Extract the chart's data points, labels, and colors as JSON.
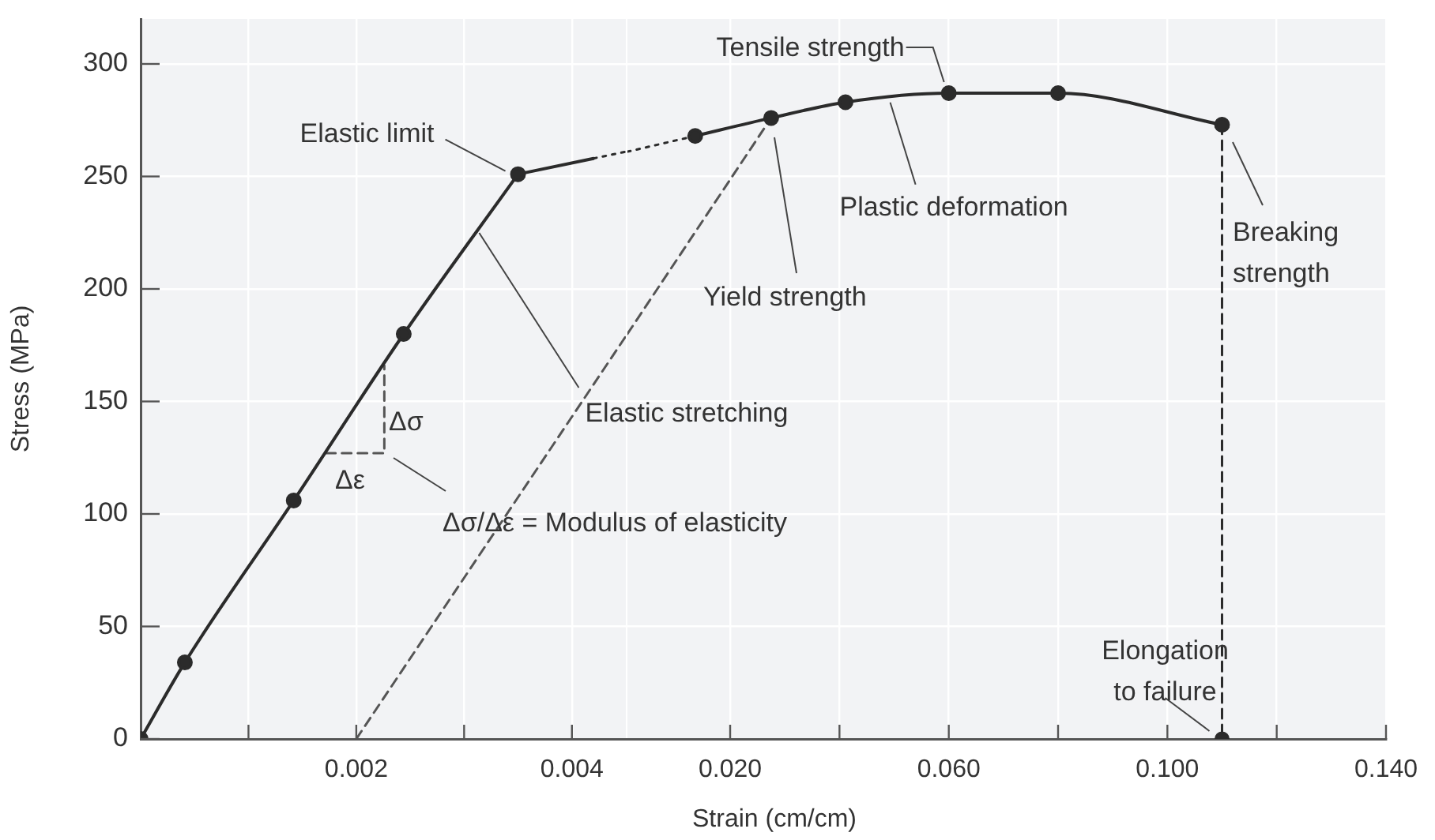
{
  "chart_data": [
    {
      "type": "line",
      "ylabel": "Stress (MPa)",
      "xlim": [
        0,
        0.0045
      ],
      "xticks": [
        {
          "value": 0.001,
          "label": null
        },
        0.002,
        {
          "value": 0.003,
          "label": null
        },
        0.004
      ],
      "ylim": [
        0,
        320
      ],
      "yticks": [
        0,
        50,
        100,
        150,
        200,
        250,
        300
      ],
      "grid": true,
      "legend": false,
      "marker": "circle",
      "line_style": "solid",
      "series": [
        {
          "color": "#2b2b2b",
          "x": [
            0,
            0.00041,
            0.00142,
            0.00244,
            0.0035
          ],
          "values": [
            0,
            34,
            106,
            180,
            251
          ]
        },
        {
          "color": "#2b2b2b",
          "x": [
            0.0035,
            0.0042
          ],
          "values": [
            251,
            258
          ],
          "marker": "none"
        },
        {
          "color": "#2b2b2b",
          "x": [
            0.0042,
            0.0045
          ],
          "values": [
            258,
            261
          ],
          "line_style": "dotted",
          "marker": "none"
        },
        {
          "color": "#555555",
          "x": [
            0.002,
            0.0045
          ],
          "values": [
            0,
            179
          ],
          "line_style": "dashed",
          "marker": "none"
        },
        {
          "color": "#555555",
          "x": [
            0.00172,
            0.00226,
            0.00226
          ],
          "values": [
            127,
            127,
            166
          ],
          "line_style": "dashed",
          "marker": "none"
        }
      ],
      "annotations": [
        {
          "text": "Elastic limit",
          "x": 0.0035,
          "y": 251
        },
        {
          "text": "Elastic stretching",
          "x": 0.00314,
          "y": 227
        },
        "Δσ",
        "Δε",
        "Δσ/Δε = Modulus of elasticity"
      ]
    },
    {
      "type": "line",
      "xlabel": "Strain (cm/cm)",
      "xlim": [
        0.0012,
        0.14
      ],
      "xticks": [
        {
          "value": 0.02,
          "label": "0.020"
        },
        {
          "value": 0.04,
          "label": null
        },
        {
          "value": 0.06,
          "label": "0.060"
        },
        {
          "value": 0.08,
          "label": null
        },
        {
          "value": 0.1,
          "label": "0.100"
        },
        {
          "value": 0.12,
          "label": null
        },
        {
          "value": 0.14,
          "label": "0.140"
        }
      ],
      "ylim": [
        0,
        320
      ],
      "yticks": [
        0,
        50,
        100,
        150,
        200,
        250,
        300
      ],
      "tick_labels": "x",
      "grid": true,
      "legend": false,
      "marker": "circle",
      "line_style": "solid",
      "series": [
        {
          "color": "#2b2b2b",
          "x": [
            0.0136,
            0.0275,
            0.0411,
            0.06,
            0.08,
            0.11
          ],
          "values": [
            268,
            276,
            283,
            287,
            287,
            273
          ]
        },
        {
          "color": "#2b2b2b",
          "x": [
            0.0012,
            0.0136
          ],
          "values": [
            261,
            268
          ],
          "line_style": "dotted",
          "marker": "none"
        },
        {
          "color": "#555555",
          "x": [
            0.0012,
            0.0275
          ],
          "values": [
            180,
            276
          ],
          "line_style": "dashed",
          "marker": "none"
        },
        {
          "color": "#2b2b2b",
          "x": [
            0.11,
            0.11
          ],
          "values": [
            273,
            0
          ],
          "line_style": "dashed",
          "marker": "circle"
        }
      ],
      "annotations": [
        {
          "text": "Tensile strength",
          "x": 0.06,
          "y": 287
        },
        "Yield strength",
        {
          "text": "Plastic deformation",
          "x": 0.049,
          "y": 285
        },
        "Breaking\nstrength",
        {
          "text": "Elongation\nto failure",
          "x": 0.11,
          "y": 0
        }
      ]
    }
  ]
}
